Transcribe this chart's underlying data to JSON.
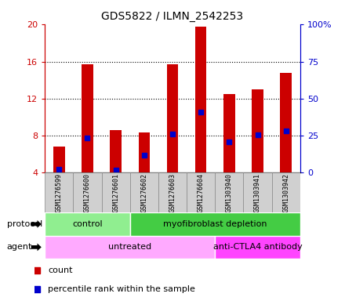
{
  "title": "GDS5822 / ILMN_2542253",
  "samples": [
    "GSM1276599",
    "GSM1276600",
    "GSM1276601",
    "GSM1276602",
    "GSM1276603",
    "GSM1276604",
    "GSM1303940",
    "GSM1303941",
    "GSM1303942"
  ],
  "counts": [
    6.8,
    15.7,
    8.6,
    8.3,
    15.7,
    19.8,
    12.5,
    13.0,
    14.8
  ],
  "percentiles": [
    4.35,
    7.75,
    4.25,
    5.9,
    8.2,
    10.5,
    7.35,
    8.1,
    8.5
  ],
  "y_min": 4,
  "y_max": 20,
  "y_ticks_left": [
    4,
    8,
    12,
    16,
    20
  ],
  "y_ticks_right_vals": [
    0,
    25,
    50,
    75,
    100
  ],
  "bar_color": "#cc0000",
  "percentile_color": "#0000cc",
  "bar_width": 0.4,
  "protocol_groups": [
    {
      "label": "control",
      "start": 0,
      "end": 3,
      "color": "#90ee90"
    },
    {
      "label": "myofibroblast depletion",
      "start": 3,
      "end": 9,
      "color": "#44cc44"
    }
  ],
  "agent_groups": [
    {
      "label": "untreated",
      "start": 0,
      "end": 6,
      "color": "#ffaaff"
    },
    {
      "label": "anti-CTLA4 antibody",
      "start": 6,
      "end": 9,
      "color": "#ff44ff"
    }
  ],
  "sample_box_color": "#d0d0d0",
  "sample_box_edge": "#888888",
  "background_color": "#ffffff",
  "left_tick_color": "#cc0000",
  "right_tick_color": "#0000cc",
  "grid_linestyle": ":",
  "grid_color": "#000000",
  "grid_linewidth": 0.8
}
